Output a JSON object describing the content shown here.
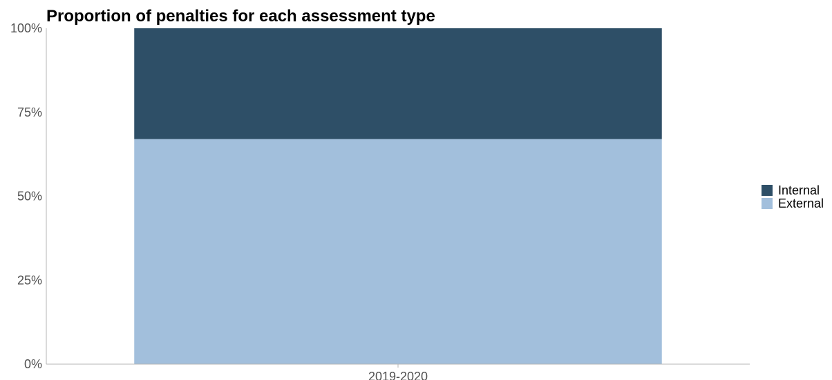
{
  "chart_data": {
    "type": "bar",
    "stacked": true,
    "percent": true,
    "title": "Proportion of penalties for each assessment type",
    "xlabel": "",
    "ylabel": "",
    "categories": [
      "2019-2020"
    ],
    "series": [
      {
        "name": "External",
        "values": [
          67
        ],
        "color": "#a2bfdc"
      },
      {
        "name": "Internal",
        "values": [
          33
        ],
        "color": "#2e4f67"
      }
    ],
    "ylim": [
      0,
      100
    ],
    "yticks": [
      "0%",
      "25%",
      "50%",
      "75%",
      "100%"
    ],
    "legend_order": [
      "Internal",
      "External"
    ],
    "legend_position": "right",
    "grid": false
  },
  "colors": {
    "axis_line": "#b4b4b4",
    "tick_text": "#505050"
  }
}
